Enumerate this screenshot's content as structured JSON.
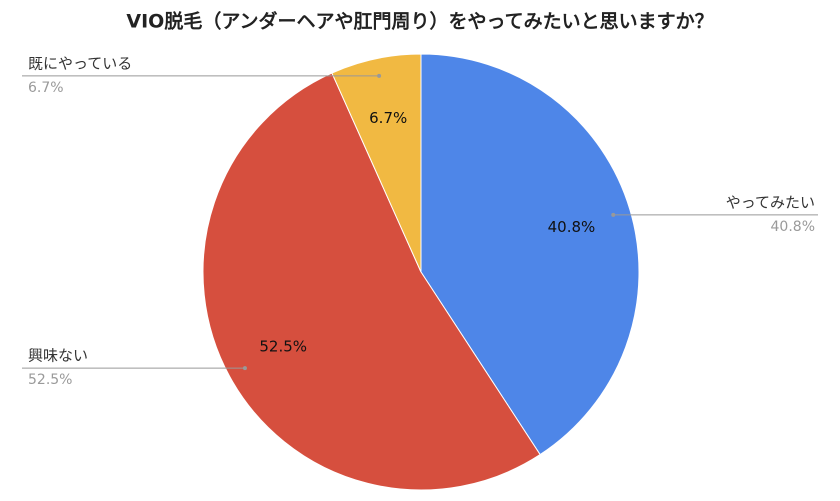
{
  "chart_data": {
    "type": "pie",
    "title": "VIO脱毛（アンダーヘアや肛門周り）をやってみたいと思いますか？",
    "categories": [
      "やってみたい",
      "興味ない",
      "既にやっている"
    ],
    "values": [
      40.8,
      52.5,
      6.7
    ],
    "value_labels": [
      "40.8%",
      "52.5%",
      "6.7%"
    ],
    "colors": [
      "#4e86e8",
      "#d64f3e",
      "#f1b942"
    ]
  }
}
